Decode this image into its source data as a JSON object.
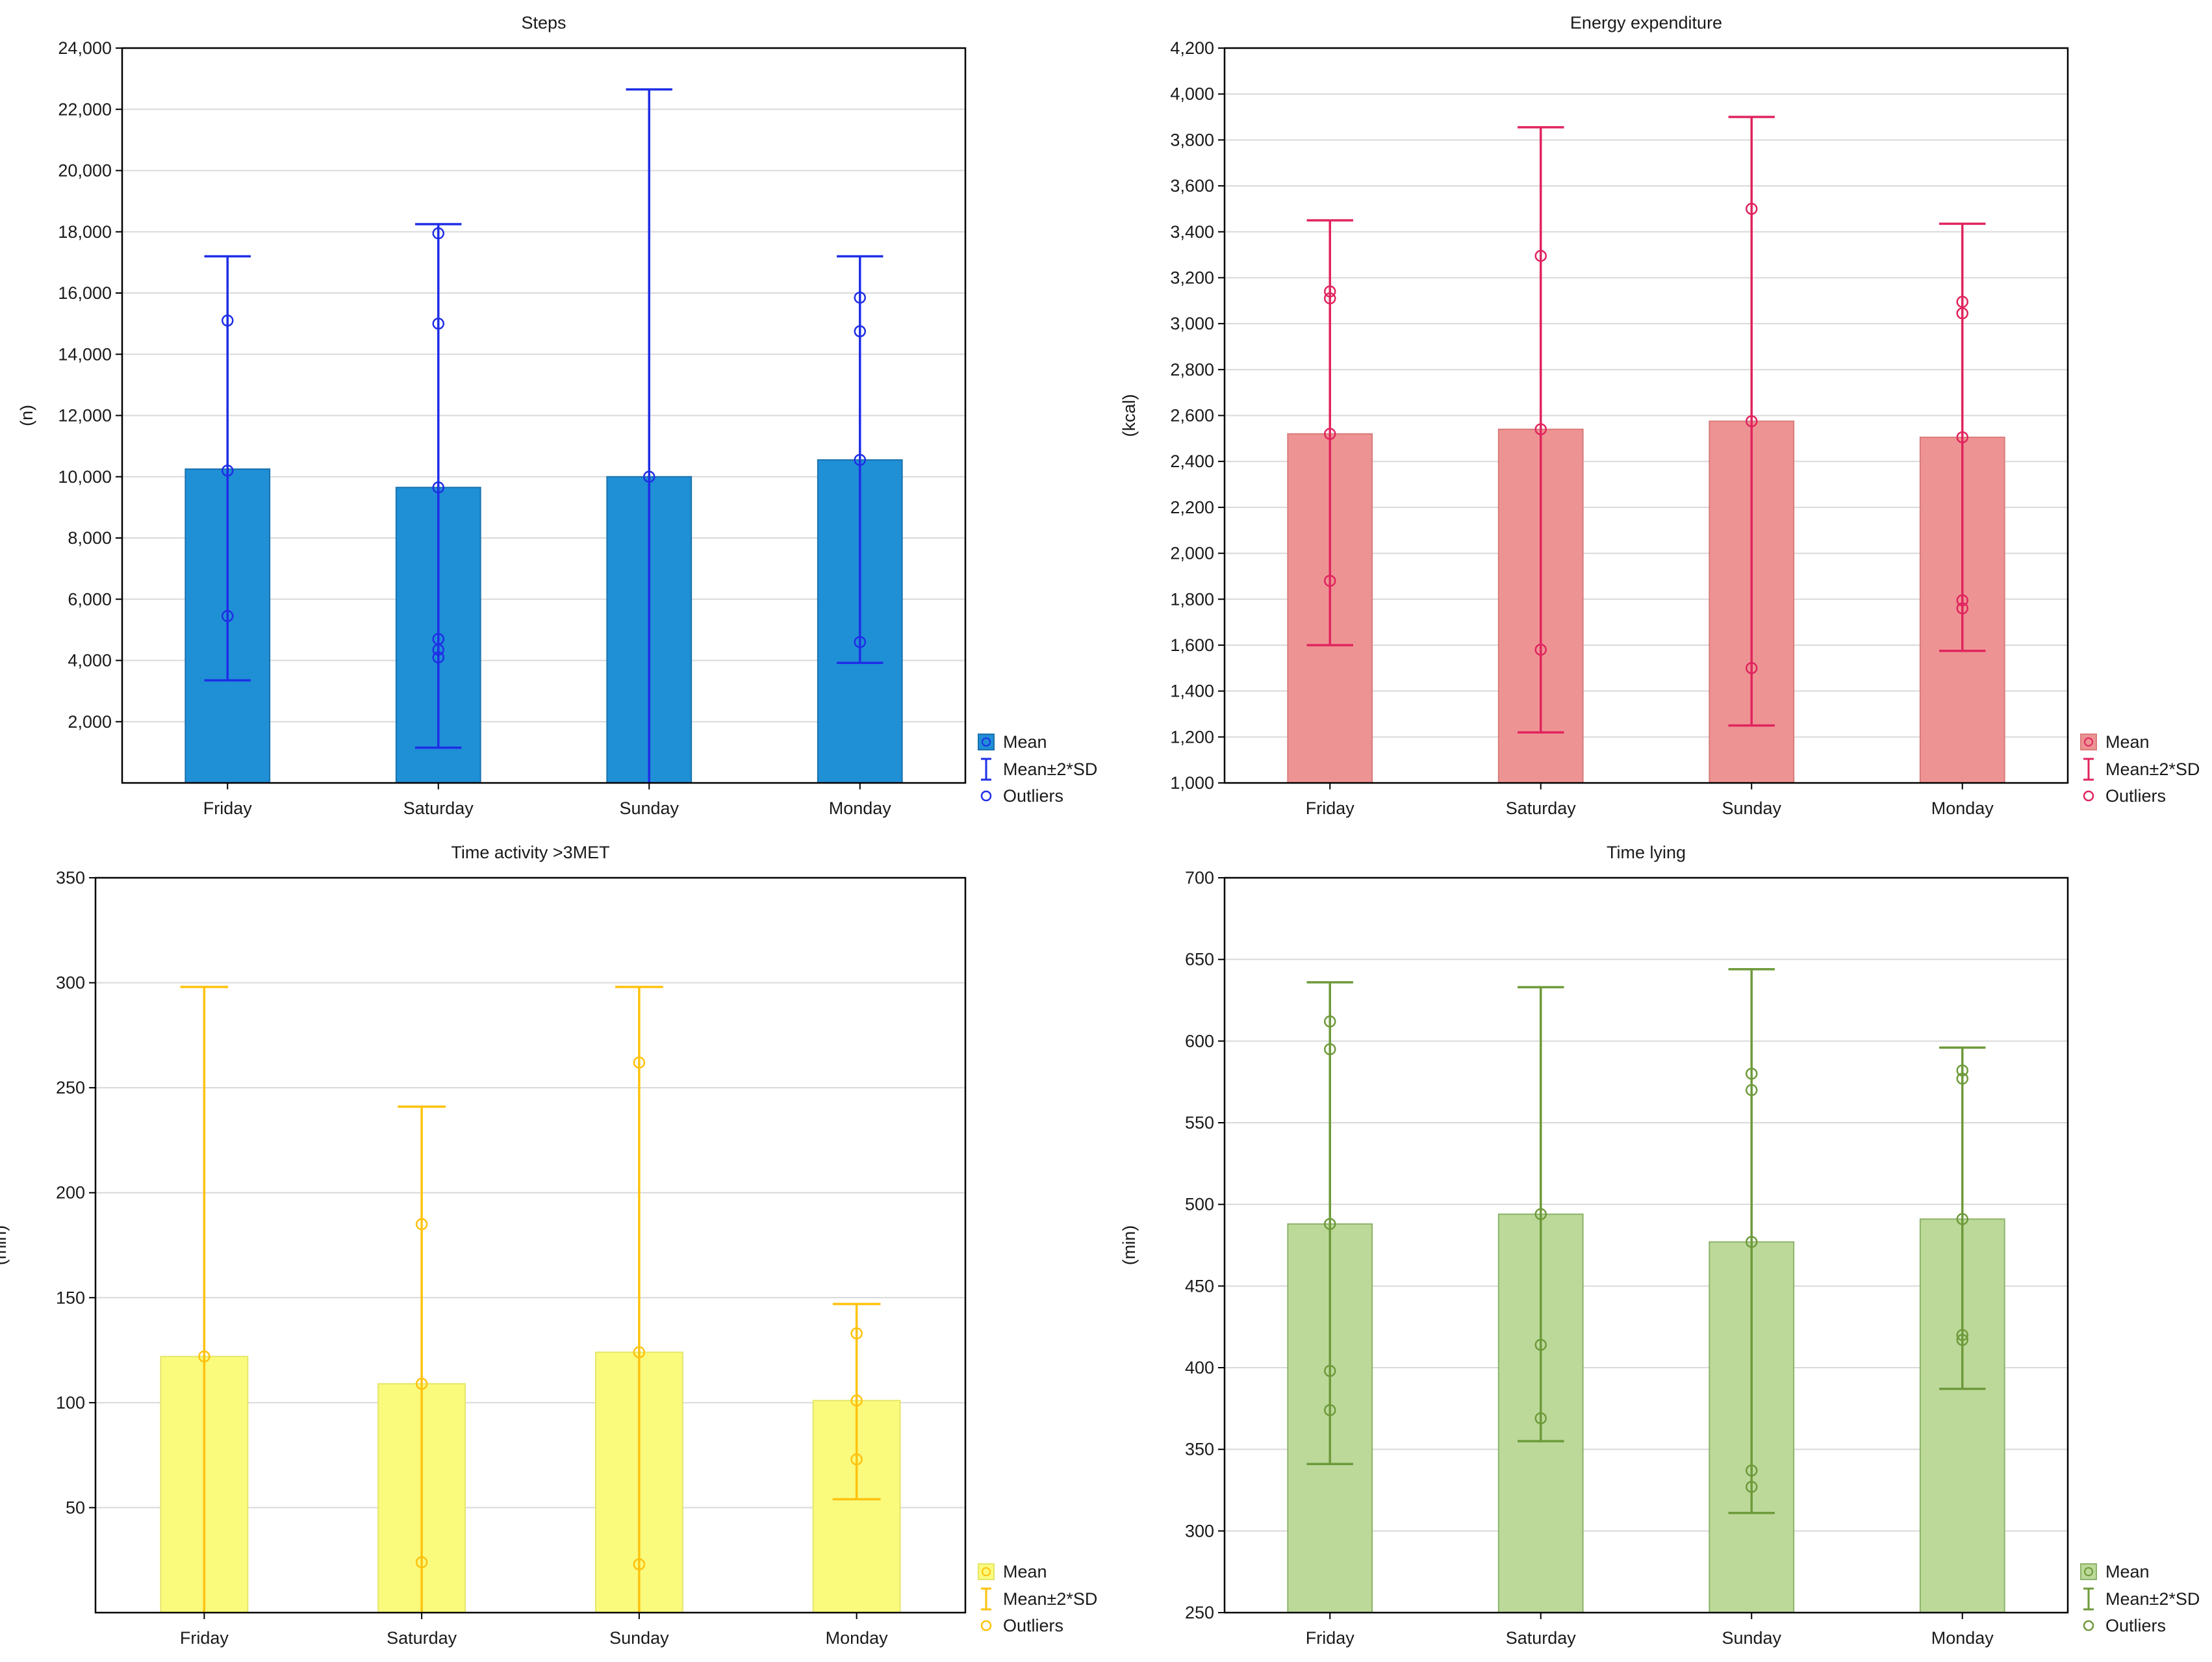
{
  "chart_data": [
    {
      "id": "steps",
      "type": "bar",
      "title": "Steps",
      "xlabel": "",
      "ylabel": "(n)",
      "ylim": [
        0,
        24000
      ],
      "yticks": [
        2000,
        4000,
        6000,
        8000,
        10000,
        12000,
        14000,
        16000,
        18000,
        20000,
        22000,
        24000
      ],
      "ytick_labels": [
        "2,000",
        "4,000",
        "6,000",
        "8,000",
        "10,000",
        "12,000",
        "14,000",
        "16,000",
        "18,000",
        "20,000",
        "22,000",
        "24,000"
      ],
      "grid": true,
      "categories": [
        "Friday",
        "Saturday",
        "Sunday",
        "Monday"
      ],
      "mean": [
        10250,
        9650,
        10000,
        10550
      ],
      "err_low": [
        3350,
        1150,
        0,
        3920
      ],
      "err_high": [
        17200,
        18250,
        22650,
        17200
      ],
      "outliers": [
        [
          15100,
          10200,
          5450
        ],
        [
          17950,
          15000,
          9650,
          4700,
          4350,
          4100
        ],
        [
          10000
        ],
        [
          15850,
          14750,
          10550,
          4600
        ]
      ],
      "colors": {
        "fill": "#1f8fd6",
        "bar_stroke": "#1a72ad",
        "line": "#1f2ee6"
      },
      "legend": {
        "position": "right-bottom",
        "entries": [
          "Mean",
          "Mean±2*SD",
          "Outliers"
        ]
      }
    },
    {
      "id": "energy",
      "type": "bar",
      "title": "Energy expenditure",
      "xlabel": "",
      "ylabel": "(kcal)",
      "ylim": [
        1000,
        4200
      ],
      "yticks": [
        1000,
        1200,
        1400,
        1600,
        1800,
        2000,
        2200,
        2400,
        2600,
        2800,
        3000,
        3200,
        3400,
        3600,
        3800,
        4000,
        4200
      ],
      "ytick_labels": [
        "1,000",
        "1,200",
        "1,400",
        "1,600",
        "1,800",
        "2,000",
        "2,200",
        "2,400",
        "2,600",
        "2,800",
        "3,000",
        "3,200",
        "3,400",
        "3,600",
        "3,800",
        "4,000",
        "4,200"
      ],
      "grid": true,
      "categories": [
        "Friday",
        "Saturday",
        "Sunday",
        "Monday"
      ],
      "mean": [
        2520,
        2540,
        2575,
        2505
      ],
      "err_low": [
        1600,
        1220,
        1250,
        1575
      ],
      "err_high": [
        3450,
        3855,
        3900,
        3435
      ],
      "outliers": [
        [
          3140,
          3110,
          2520,
          1880
        ],
        [
          3295,
          2540,
          1580
        ],
        [
          3500,
          2575,
          1500
        ],
        [
          3095,
          3045,
          2505,
          1795,
          1760
        ]
      ],
      "colors": {
        "fill": "#ee9393",
        "bar_stroke": "#d97b7b",
        "line": "#e0245e"
      },
      "legend": {
        "position": "right-bottom",
        "entries": [
          "Mean",
          "Mean±2*SD",
          "Outliers"
        ]
      }
    },
    {
      "id": "activity",
      "type": "bar",
      "title": "Time activity >3MET",
      "xlabel": "",
      "ylabel": "(min)",
      "ylim": [
        0,
        350
      ],
      "yticks": [
        50,
        100,
        150,
        200,
        250,
        300,
        350
      ],
      "ytick_labels": [
        "50",
        "100",
        "150",
        "200",
        "250",
        "300",
        "350"
      ],
      "grid": true,
      "categories": [
        "Friday",
        "Saturday",
        "Sunday",
        "Monday"
      ],
      "mean": [
        122,
        109,
        124,
        101
      ],
      "err_low": [
        0,
        0,
        0,
        54
      ],
      "err_high": [
        298,
        241,
        298,
        147
      ],
      "outliers": [
        [
          122
        ],
        [
          185,
          109,
          24
        ],
        [
          262,
          124,
          23
        ],
        [
          133,
          101,
          73
        ]
      ],
      "colors": {
        "fill": "#fafa7d",
        "bar_stroke": "#e5e56a",
        "line": "#ffc20e"
      },
      "legend": {
        "position": "right-bottom",
        "entries": [
          "Mean",
          "Mean±2*SD",
          "Outliers"
        ]
      }
    },
    {
      "id": "lying",
      "type": "bar",
      "title": "Time lying",
      "xlabel": "",
      "ylabel": "(min)",
      "ylim": [
        250,
        700
      ],
      "yticks": [
        250,
        300,
        350,
        400,
        450,
        500,
        550,
        600,
        650,
        700
      ],
      "ytick_labels": [
        "250",
        "300",
        "350",
        "400",
        "450",
        "500",
        "550",
        "600",
        "650",
        "700"
      ],
      "grid": true,
      "categories": [
        "Friday",
        "Saturday",
        "Sunday",
        "Monday"
      ],
      "mean": [
        488,
        494,
        477,
        491
      ],
      "err_low": [
        341,
        355,
        311,
        387
      ],
      "err_high": [
        636,
        633,
        644,
        596
      ],
      "outliers": [
        [
          612,
          595,
          488,
          398,
          374
        ],
        [
          494,
          414,
          369
        ],
        [
          580,
          570,
          477,
          337,
          327
        ],
        [
          582,
          577,
          491,
          420,
          417
        ]
      ],
      "colors": {
        "fill": "#bcd99a",
        "bar_stroke": "#8db36a",
        "line": "#6e9a3a"
      },
      "legend": {
        "position": "right-bottom",
        "entries": [
          "Mean",
          "Mean±2*SD",
          "Outliers"
        ]
      }
    }
  ]
}
